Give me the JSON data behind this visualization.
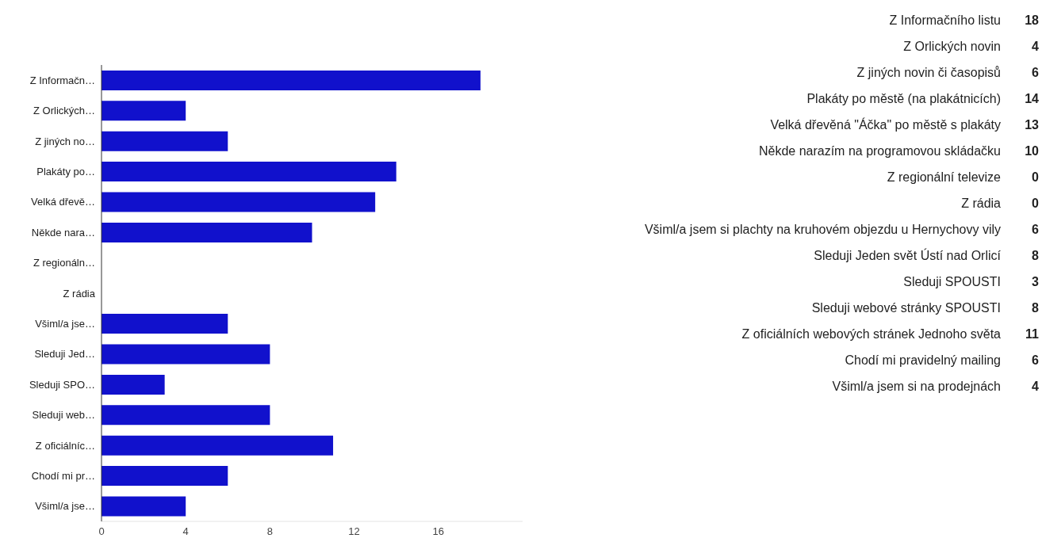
{
  "chart_data": {
    "type": "bar",
    "orientation": "horizontal",
    "categories": [
      "Z Informačn…",
      "Z Orlických…",
      "Z jiných no…",
      "Plakáty po…",
      "Velká dřevě…",
      "Někde nara…",
      "Z regionáln…",
      "Z rádia",
      "Všiml/a jse…",
      "Sleduji Jed…",
      "Sleduji SPO…",
      "Sleduji web…",
      "Z oficiálníc…",
      "Chodí mi pr…",
      "Všiml/a jse…"
    ],
    "values": [
      18,
      4,
      6,
      14,
      13,
      10,
      0,
      0,
      6,
      8,
      3,
      8,
      11,
      6,
      4
    ],
    "annotations": [
      "Z Informačního listu",
      "18",
      "Z Orlických novin",
      "4",
      "Z jiných novin či časopisů",
      "6",
      "Plakáty po městě (na plakátnicích)",
      "14",
      "Velká dřevěná \"Áčka\" po městě s plakáty",
      "13",
      "Někde narazím na programovou skládačku",
      "10",
      "Z regionální televize",
      "0",
      "Z rádia",
      "0",
      "Všiml/a jsem si plachty na kruhovém objezdu u Hernychovy vily",
      "6",
      "Sleduji Jeden svět Ústí nad Orlicí",
      "8",
      "Sleduji SPOUSTI",
      "3",
      "Sleduji webové stránky SPOUSTI",
      "8",
      "Z oficiálních webových stránek Jednoho světa",
      "11",
      "Chodí mi pravidelný mailing",
      "6",
      "Všiml/a jsem si na prodejnách",
      "4"
    ],
    "color": "#1111cc",
    "xlim": [
      0,
      20
    ],
    "xticks": [
      0,
      4,
      8,
      12,
      16
    ],
    "grid": false,
    "legend": false
  }
}
